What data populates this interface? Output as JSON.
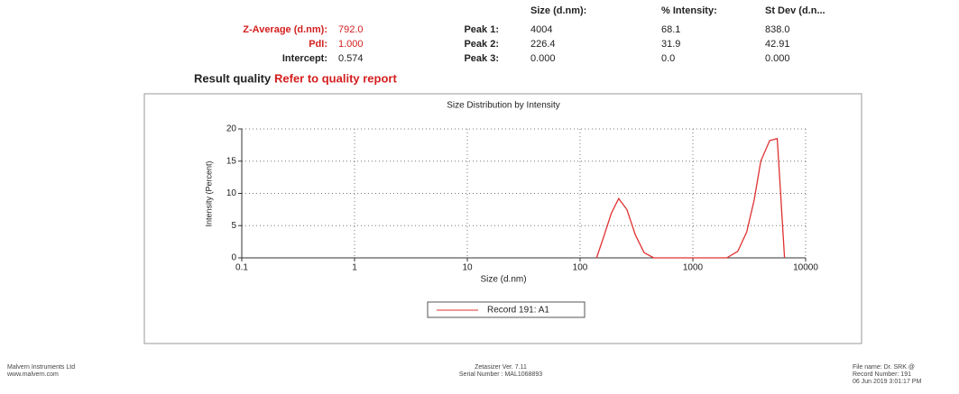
{
  "header": {
    "z_average_label": "Z-Average (d.nm):",
    "z_average": "792.0",
    "pdi_label": "PdI:",
    "pdi": "1.000",
    "intercept_label": "Intercept:",
    "intercept": "0.574",
    "result_quality_label": "Result quality :",
    "result_quality": "Refer to quality report"
  },
  "peaks": {
    "columns": [
      "Size (d.nm):",
      "% Intensity:",
      "St Dev (d.n..."
    ],
    "rows": [
      [
        "Peak 1:",
        "4004",
        "68.1",
        "838.0"
      ],
      [
        "Peak 2:",
        "226.4",
        "31.9",
        "42.91"
      ],
      [
        "Peak 3:",
        "0.000",
        "0.0",
        "0.000"
      ]
    ]
  },
  "chart_data": {
    "type": "line",
    "title": "Size Distribution by Intensity",
    "x_label": "Size (d.nm)",
    "y_label": "Intensity (Percent)",
    "x": [
      140,
      160,
      190,
      220,
      260,
      310,
      370,
      450,
      2000,
      2500,
      3000,
      3500,
      4000,
      4800,
      5600,
      6000,
      6500
    ],
    "series": [
      {
        "name": "Record 191: A1",
        "color": "#e03030",
        "values": [
          0,
          3,
          7,
          9.2,
          7.5,
          3.5,
          0.8,
          0,
          0,
          1,
          4,
          9,
          15,
          18.2,
          18.5,
          10,
          0
        ]
      }
    ],
    "xlim": [
      0.1,
      10000
    ],
    "xticks": [
      0.1,
      1,
      10,
      100,
      1000,
      10000
    ],
    "xscale": "log",
    "ylim": [
      0,
      20
    ],
    "yticks": [
      0,
      5,
      10,
      15,
      20
    ],
    "grid": true
  },
  "footer": {
    "left": [
      "Malvern Instruments Ltd",
      "www.malvern.com"
    ],
    "center": [
      "Zetasizer Ver. 7.11",
      "Serial Number : MAL1068893"
    ],
    "right": [
      "File name: Dr. SRK @",
      "Record Number: 191",
      "06 Jun 2019 3:01:17 PM"
    ]
  }
}
